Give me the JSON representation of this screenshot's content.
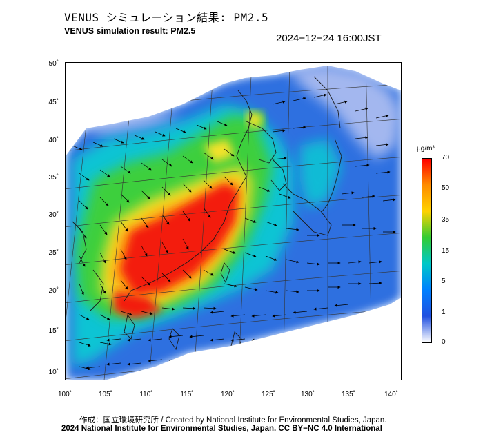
{
  "header": {
    "title_jp": "VENUS シミュレーション結果: PM2.5",
    "title_en": "VENUS simulation result: PM2.5",
    "timestamp": "2024−12−24 16:00JST"
  },
  "map": {
    "lat_labels": [
      "50˚",
      "45˚",
      "40˚",
      "35˚",
      "30˚",
      "25˚",
      "20˚",
      "15˚",
      "10˚"
    ],
    "lon_labels": [
      "100˚",
      "105˚",
      "110˚",
      "115˚",
      "120˚",
      "125˚",
      "130˚",
      "135˚",
      "140˚"
    ]
  },
  "colorbar": {
    "unit": "μg/m³",
    "tick_labels": [
      "70",
      "50",
      "35",
      "15",
      "5",
      "1",
      "0"
    ],
    "colors": [
      "#ff0000",
      "#ff8c00",
      "#ffd200",
      "#33cc33",
      "#00c8c8",
      "#0080ff",
      "#2050e0",
      "#ffffff"
    ]
  },
  "footer": {
    "credit": "作成：国立環境研究所 / Created by National Institute for Environmental Studies, Japan.",
    "copyright": "2024 National Institute for Environmental Studies, Japan. CC BY−NC 4.0 International"
  }
}
